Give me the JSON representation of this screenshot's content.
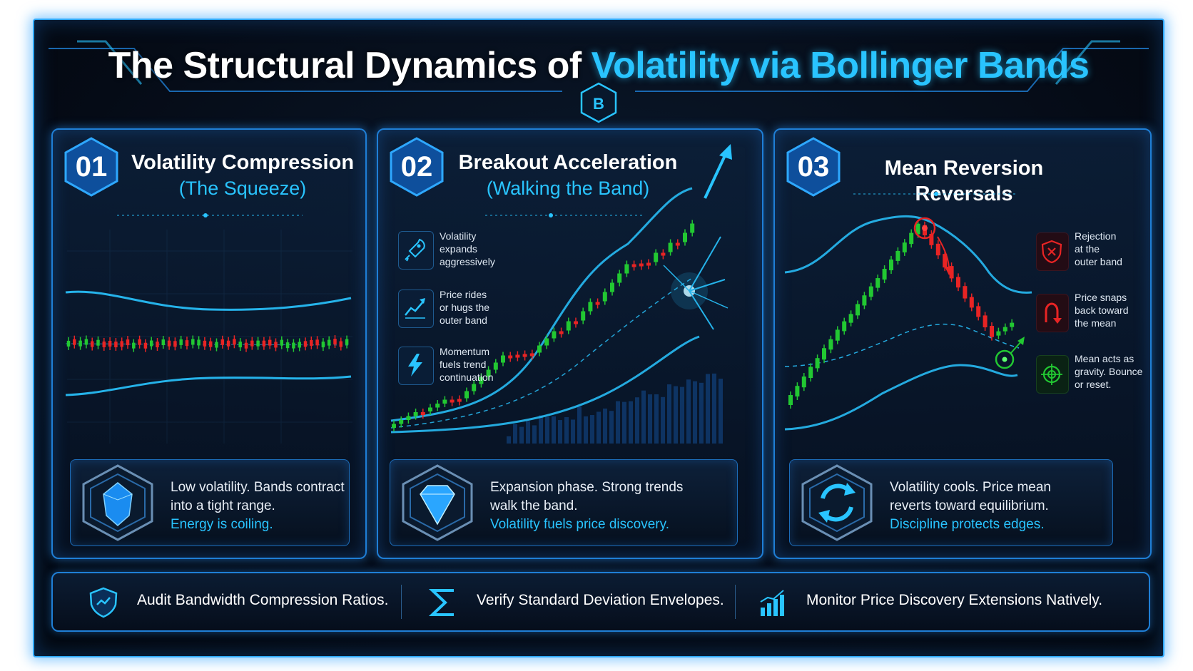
{
  "header": {
    "title_prefix": "The Structural Dynamics of ",
    "title_accent": "Volatility via Bollinger Bands",
    "logo_icon": "bb-hexagon-logo-icon"
  },
  "colors": {
    "accent": "#29c4ff",
    "frame": "#1f7fd6",
    "bullish": "#22c832",
    "bearish": "#e82424",
    "background": "#050b16"
  },
  "panels": [
    {
      "number": "01",
      "title": "Volatility Compression",
      "subtitle": "(The Squeeze)",
      "caption_line1": "Low volatility. Bands contract",
      "caption_line2": "into a tight range.",
      "caption_highlight": "Energy is coiling.",
      "caption_icon": "crystal-gem-icon"
    },
    {
      "number": "02",
      "title": "Breakout Acceleration",
      "subtitle": "(Walking the Band)",
      "features": [
        {
          "icon": "rocket-icon",
          "line1": "Volatility",
          "line2": "expands",
          "line3": "aggressively"
        },
        {
          "icon": "trend-up-icon",
          "line1": "Price rides",
          "line2": "or hugs the",
          "line3": "outer band"
        },
        {
          "icon": "lightning-icon",
          "line1": "Momentum",
          "line2": "fuels trend",
          "line3": "continuation"
        }
      ],
      "caption_line1": "Expansion phase. Strong trends",
      "caption_line2": "walk the band.",
      "caption_highlight": "Volatility fuels price discovery.",
      "caption_icon": "diamond-icon"
    },
    {
      "number": "03",
      "title": "Mean Reversion Reversals",
      "subtitle": "",
      "features": [
        {
          "icon": "shield-x-icon",
          "line1": "Rejection",
          "line2": "at the",
          "line3": "outer band"
        },
        {
          "icon": "u-turn-icon",
          "line1": "Price snaps",
          "line2": "back toward",
          "line3": "the mean"
        },
        {
          "icon": "target-icon",
          "line1": "Mean acts as",
          "line2": "gravity. Bounce",
          "line3": "or reset."
        }
      ],
      "caption_line1": "Volatility cools. Price mean",
      "caption_line2": "reverts toward equilibrium.",
      "caption_highlight": "Discipline protects edges.",
      "caption_icon": "cycle-arrows-icon"
    }
  ],
  "footer": [
    {
      "icon": "shield-icon",
      "text": "Audit Bandwidth Compression Ratios."
    },
    {
      "icon": "sigma-icon",
      "text": "Verify Standard Deviation Envelopes."
    },
    {
      "icon": "bar-growth-icon",
      "text": "Monitor Price Discovery Extensions Natively."
    }
  ]
}
